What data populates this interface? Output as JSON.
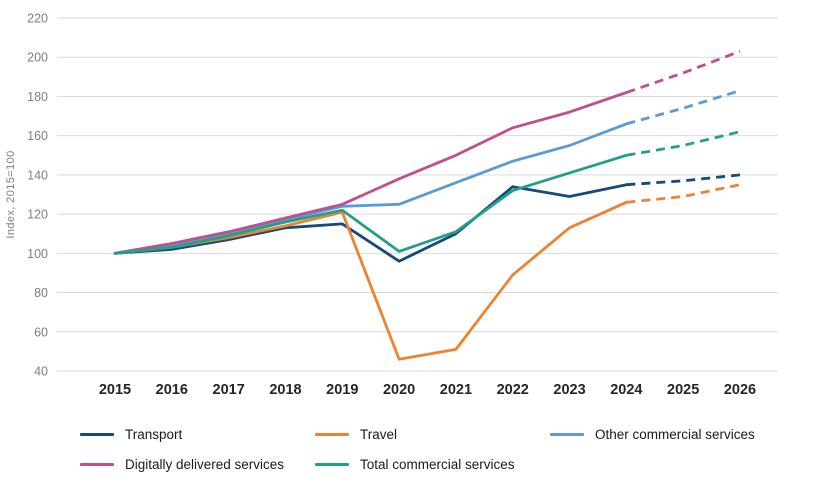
{
  "chart_data": {
    "type": "line",
    "title": "",
    "xlabel": "",
    "ylabel": "Index, 2015=100",
    "x": [
      2015,
      2016,
      2017,
      2018,
      2019,
      2020,
      2021,
      2022,
      2023,
      2024,
      2025,
      2026
    ],
    "ylim": [
      40,
      220
    ],
    "ytick_step": 20,
    "grid": true,
    "legend_position": "bottom",
    "forecast_from_x": 2024,
    "forecast_style": "dashed",
    "series": [
      {
        "name": "Transport",
        "color": "#17497b",
        "values": [
          100,
          102,
          107,
          113,
          115,
          96,
          110,
          134,
          129,
          135,
          137,
          140
        ]
      },
      {
        "name": "Travel",
        "color": "#ee8233",
        "values": [
          100,
          103,
          108,
          114,
          121,
          46,
          51,
          89,
          113,
          126,
          129,
          135
        ]
      },
      {
        "name": "Other commercial services",
        "color": "#5b9bd5",
        "values": [
          100,
          104,
          110,
          117,
          124,
          125,
          136,
          147,
          155,
          166,
          174,
          183
        ]
      },
      {
        "name": "Digitally delivered services",
        "color": "#c04f8e",
        "values": [
          100,
          105,
          111,
          118,
          125,
          138,
          150,
          164,
          172,
          182,
          192,
          203
        ]
      },
      {
        "name": "Total commercial services",
        "color": "#21a086",
        "values": [
          100,
          103,
          109,
          116,
          122,
          101,
          111,
          132,
          141,
          150,
          155,
          162
        ]
      }
    ],
    "y_tick_labels": [
      "40",
      "60",
      "80",
      "100",
      "120",
      "140",
      "160",
      "180",
      "200",
      "220"
    ],
    "x_tick_labels": [
      "2015",
      "2016",
      "2017",
      "2018",
      "2019",
      "2020",
      "2021",
      "2022",
      "2023",
      "2024",
      "2025",
      "2026"
    ]
  }
}
